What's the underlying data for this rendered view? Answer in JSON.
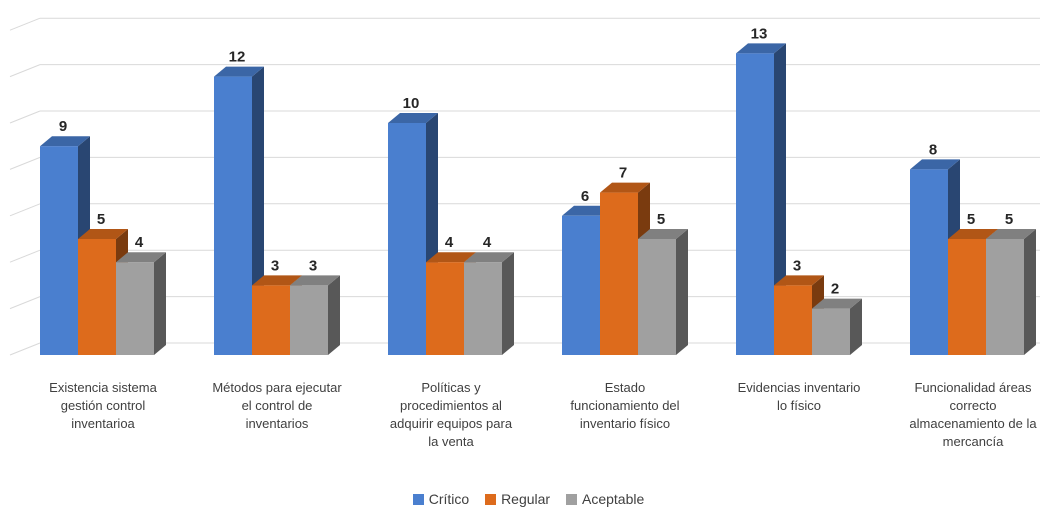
{
  "colors": {
    "critico": "#4a7fcf",
    "regular": "#dd6b1c",
    "aceptable": "#a0a0a0",
    "grid": "#d9d9d9"
  },
  "chart_data": {
    "type": "bar",
    "style": "3d-clustered-column",
    "grid": true,
    "legend_position": "bottom",
    "ylim": [
      0,
      14
    ],
    "categories": [
      [
        "Existencia sistema",
        "gestión control",
        "inventarioa"
      ],
      [
        "Métodos para ejecutar",
        "el control de",
        "inventarios"
      ],
      [
        "Políticas y",
        "procedimientos al",
        "adquirir equipos para",
        "la venta"
      ],
      [
        "Estado",
        "funcionamiento del",
        "inventario físico"
      ],
      [
        "Evidencias inventario",
        "lo físico"
      ],
      [
        "Funcionalidad áreas",
        "correcto",
        "almacenamiento de la",
        "mercancía"
      ]
    ],
    "series": [
      {
        "name": "Crítico",
        "values": [
          9,
          12,
          10,
          6,
          13,
          8
        ]
      },
      {
        "name": "Regular",
        "values": [
          5,
          3,
          4,
          7,
          3,
          5
        ]
      },
      {
        "name": "Aceptable",
        "values": [
          4,
          3,
          4,
          5,
          2,
          5
        ]
      }
    ]
  }
}
